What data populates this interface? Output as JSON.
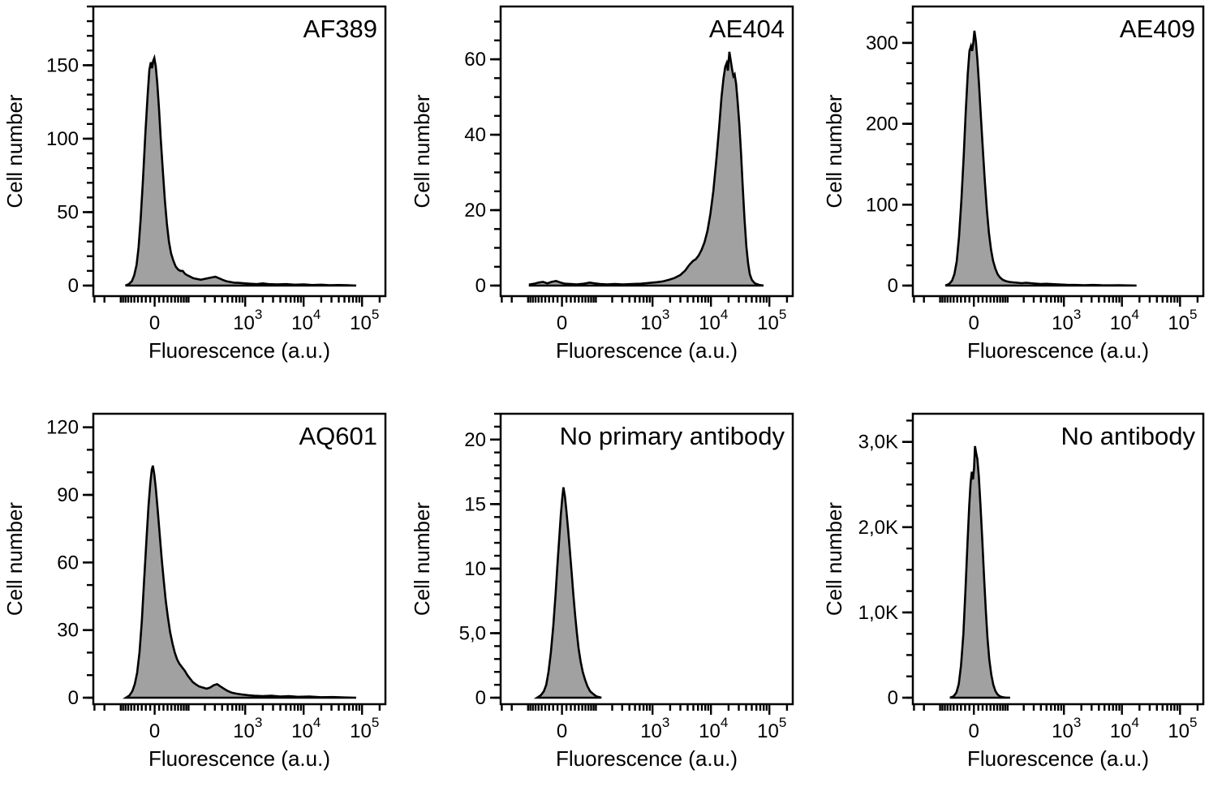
{
  "figure": {
    "background": "#ffffff",
    "histogram_fill": "#a1a1a1",
    "histogram_stroke": "#000000",
    "axis_color": "#000000",
    "y_axis_title": "Cell number",
    "x_axis": {
      "title": "Fluorescence (a.u.)",
      "scale": {
        "type": "biexponential",
        "zero_pos": 0.21,
        "decade_width": 0.2,
        "linear_constant": 56.4,
        "labeled_values": [
          0,
          1000,
          10000,
          100000
        ]
      },
      "labeled_ticks": [
        {
          "value": 0,
          "label": "0"
        },
        {
          "value": 1000,
          "mantissa": "10",
          "exponent": "3"
        },
        {
          "value": 10000,
          "mantissa": "10",
          "exponent": "4"
        },
        {
          "value": 100000,
          "mantissa": "10",
          "exponent": "5"
        }
      ]
    }
  },
  "chart_data": [
    {
      "type": "area",
      "title": "AF389",
      "ylim": [
        0,
        190
      ],
      "y_minor_step": 10,
      "y_major_ticks": [
        {
          "value": 0,
          "label": "0"
        },
        {
          "value": 50,
          "label": "50"
        },
        {
          "value": 100,
          "label": "100"
        },
        {
          "value": 150,
          "label": "150"
        }
      ],
      "peak": {
        "x_fraction": 0.209,
        "count": 155
      },
      "x_units": "axis_fraction",
      "points": [
        [
          0.11,
          0
        ],
        [
          0.122,
          1
        ],
        [
          0.132,
          3
        ],
        [
          0.14,
          7
        ],
        [
          0.148,
          14
        ],
        [
          0.155,
          26
        ],
        [
          0.162,
          45
        ],
        [
          0.17,
          72
        ],
        [
          0.178,
          103
        ],
        [
          0.186,
          130
        ],
        [
          0.192,
          147
        ],
        [
          0.197,
          152
        ],
        [
          0.201,
          148
        ],
        [
          0.205,
          153
        ],
        [
          0.209,
          155
        ],
        [
          0.214,
          149
        ],
        [
          0.219,
          138
        ],
        [
          0.225,
          120
        ],
        [
          0.231,
          99
        ],
        [
          0.238,
          78
        ],
        [
          0.245,
          58
        ],
        [
          0.252,
          42
        ],
        [
          0.259,
          30
        ],
        [
          0.266,
          22
        ],
        [
          0.274,
          17
        ],
        [
          0.282,
          13
        ],
        [
          0.29,
          11
        ],
        [
          0.298,
          10
        ],
        [
          0.306,
          10
        ],
        [
          0.314,
          8
        ],
        [
          0.322,
          7
        ],
        [
          0.332,
          6
        ],
        [
          0.342,
          5
        ],
        [
          0.355,
          4.5
        ],
        [
          0.368,
          4
        ],
        [
          0.38,
          4.5
        ],
        [
          0.393,
          5
        ],
        [
          0.405,
          5.5
        ],
        [
          0.418,
          6
        ],
        [
          0.43,
          5
        ],
        [
          0.442,
          4
        ],
        [
          0.455,
          3
        ],
        [
          0.468,
          2.5
        ],
        [
          0.482,
          2
        ],
        [
          0.5,
          1.8
        ],
        [
          0.52,
          1.5
        ],
        [
          0.54,
          1.2
        ],
        [
          0.56,
          1
        ],
        [
          0.58,
          1.5
        ],
        [
          0.6,
          1
        ],
        [
          0.63,
          0.8
        ],
        [
          0.66,
          1
        ],
        [
          0.69,
          0.6
        ],
        [
          0.72,
          0.8
        ],
        [
          0.75,
          0.4
        ],
        [
          0.78,
          0.6
        ],
        [
          0.81,
          0.3
        ],
        [
          0.84,
          0.4
        ],
        [
          0.87,
          0.2
        ],
        [
          0.9,
          0
        ]
      ]
    },
    {
      "type": "area",
      "title": "AE404",
      "ylim": [
        0,
        74
      ],
      "y_minor_step": 5,
      "y_major_ticks": [
        {
          "value": 0,
          "label": "0"
        },
        {
          "value": 20,
          "label": "20"
        },
        {
          "value": 40,
          "label": "40"
        },
        {
          "value": 60,
          "label": "60"
        }
      ],
      "peak": {
        "x_fraction": 0.783,
        "count": 62
      },
      "x_units": "axis_fraction",
      "points": [
        [
          0.1,
          0.3
        ],
        [
          0.115,
          0.5
        ],
        [
          0.13,
          0.8
        ],
        [
          0.145,
          1.0
        ],
        [
          0.16,
          0.6
        ],
        [
          0.175,
          1.0
        ],
        [
          0.19,
          1.2
        ],
        [
          0.205,
          0.8
        ],
        [
          0.22,
          0.5
        ],
        [
          0.24,
          0.4
        ],
        [
          0.26,
          0.3
        ],
        [
          0.285,
          0.5
        ],
        [
          0.305,
          0.8
        ],
        [
          0.32,
          0.6
        ],
        [
          0.34,
          0.4
        ],
        [
          0.365,
          0.3
        ],
        [
          0.39,
          0.4
        ],
        [
          0.42,
          0.3
        ],
        [
          0.45,
          0.4
        ],
        [
          0.48,
          0.5
        ],
        [
          0.51,
          0.7
        ],
        [
          0.535,
          0.9
        ],
        [
          0.555,
          1.1
        ],
        [
          0.575,
          1.5
        ],
        [
          0.595,
          2.0
        ],
        [
          0.615,
          2.8
        ],
        [
          0.632,
          4.0
        ],
        [
          0.646,
          5.5
        ],
        [
          0.658,
          6.5
        ],
        [
          0.668,
          7.0
        ],
        [
          0.678,
          8.0
        ],
        [
          0.688,
          9.5
        ],
        [
          0.698,
          11.5
        ],
        [
          0.708,
          14.5
        ],
        [
          0.718,
          19
        ],
        [
          0.728,
          25
        ],
        [
          0.738,
          33
        ],
        [
          0.748,
          42
        ],
        [
          0.756,
          50
        ],
        [
          0.763,
          55
        ],
        [
          0.769,
          58
        ],
        [
          0.774,
          59
        ],
        [
          0.778,
          57
        ],
        [
          0.783,
          62
        ],
        [
          0.788,
          59.5
        ],
        [
          0.793,
          57
        ],
        [
          0.797,
          55.5
        ],
        [
          0.801,
          56
        ],
        [
          0.806,
          53.5
        ],
        [
          0.811,
          49
        ],
        [
          0.817,
          43
        ],
        [
          0.823,
          35
        ],
        [
          0.829,
          26
        ],
        [
          0.835,
          17.5
        ],
        [
          0.841,
          10.5
        ],
        [
          0.847,
          6
        ],
        [
          0.853,
          3
        ],
        [
          0.86,
          1.5
        ],
        [
          0.87,
          0.6
        ],
        [
          0.885,
          0.2
        ],
        [
          0.9,
          0
        ]
      ]
    },
    {
      "type": "area",
      "title": "AE409",
      "ylim": [
        0,
        345
      ],
      "y_minor_step": 25,
      "y_major_ticks": [
        {
          "value": 0,
          "label": "0"
        },
        {
          "value": 100,
          "label": "100"
        },
        {
          "value": 200,
          "label": "200"
        },
        {
          "value": 300,
          "label": "300"
        }
      ],
      "peak": {
        "x_fraction": 0.212,
        "count": 315
      },
      "x_units": "axis_fraction",
      "points": [
        [
          0.112,
          0
        ],
        [
          0.125,
          2
        ],
        [
          0.135,
          6
        ],
        [
          0.143,
          14
        ],
        [
          0.151,
          30
        ],
        [
          0.159,
          60
        ],
        [
          0.167,
          105
        ],
        [
          0.175,
          160
        ],
        [
          0.182,
          215
        ],
        [
          0.189,
          262
        ],
        [
          0.195,
          290
        ],
        [
          0.2,
          296
        ],
        [
          0.204,
          290
        ],
        [
          0.208,
          300
        ],
        [
          0.212,
          315
        ],
        [
          0.217,
          302
        ],
        [
          0.222,
          280
        ],
        [
          0.228,
          248
        ],
        [
          0.234,
          210
        ],
        [
          0.241,
          168
        ],
        [
          0.248,
          128
        ],
        [
          0.255,
          93
        ],
        [
          0.262,
          65
        ],
        [
          0.269,
          45
        ],
        [
          0.276,
          31
        ],
        [
          0.284,
          21
        ],
        [
          0.292,
          14
        ],
        [
          0.3,
          10
        ],
        [
          0.31,
          7
        ],
        [
          0.32,
          5.5
        ],
        [
          0.332,
          4.5
        ],
        [
          0.345,
          4
        ],
        [
          0.36,
          3.5
        ],
        [
          0.375,
          3
        ],
        [
          0.39,
          3.5
        ],
        [
          0.405,
          3
        ],
        [
          0.42,
          2.5
        ],
        [
          0.44,
          2
        ],
        [
          0.46,
          2.2
        ],
        [
          0.48,
          1.8
        ],
        [
          0.5,
          1.5
        ],
        [
          0.53,
          1
        ],
        [
          0.56,
          0.8
        ],
        [
          0.59,
          0.5
        ],
        [
          0.62,
          0.8
        ],
        [
          0.65,
          0.4
        ],
        [
          0.68,
          0.3
        ],
        [
          0.71,
          0.4
        ],
        [
          0.74,
          0.2
        ],
        [
          0.77,
          0
        ]
      ]
    },
    {
      "type": "area",
      "title": "AQ601",
      "ylim": [
        0,
        126
      ],
      "y_minor_step": 10,
      "y_major_ticks": [
        {
          "value": 0,
          "label": "0"
        },
        {
          "value": 30,
          "label": "30"
        },
        {
          "value": 60,
          "label": "60"
        },
        {
          "value": 90,
          "label": "90"
        },
        {
          "value": 120,
          "label": "120"
        }
      ],
      "peak": {
        "x_fraction": 0.204,
        "count": 103
      },
      "x_units": "axis_fraction",
      "points": [
        [
          0.112,
          0
        ],
        [
          0.124,
          1
        ],
        [
          0.134,
          3
        ],
        [
          0.142,
          6
        ],
        [
          0.15,
          11
        ],
        [
          0.158,
          20
        ],
        [
          0.166,
          34
        ],
        [
          0.174,
          52
        ],
        [
          0.182,
          70
        ],
        [
          0.189,
          85
        ],
        [
          0.195,
          95
        ],
        [
          0.2,
          101
        ],
        [
          0.204,
          103
        ],
        [
          0.209,
          99
        ],
        [
          0.214,
          93
        ],
        [
          0.22,
          84
        ],
        [
          0.227,
          73
        ],
        [
          0.234,
          62
        ],
        [
          0.241,
          52
        ],
        [
          0.248,
          43
        ],
        [
          0.255,
          36
        ],
        [
          0.263,
          29
        ],
        [
          0.271,
          24
        ],
        [
          0.279,
          20
        ],
        [
          0.287,
          17
        ],
        [
          0.295,
          15
        ],
        [
          0.304,
          13.5
        ],
        [
          0.313,
          12
        ],
        [
          0.322,
          10
        ],
        [
          0.331,
          8.5
        ],
        [
          0.34,
          7
        ],
        [
          0.35,
          6
        ],
        [
          0.362,
          5
        ],
        [
          0.375,
          4.5
        ],
        [
          0.388,
          4
        ],
        [
          0.4,
          4.5
        ],
        [
          0.412,
          5.5
        ],
        [
          0.424,
          6
        ],
        [
          0.435,
          5
        ],
        [
          0.447,
          4
        ],
        [
          0.46,
          3
        ],
        [
          0.475,
          2.2
        ],
        [
          0.49,
          1.8
        ],
        [
          0.51,
          1.4
        ],
        [
          0.53,
          1.1
        ],
        [
          0.55,
          0.9
        ],
        [
          0.58,
          0.7
        ],
        [
          0.61,
          0.9
        ],
        [
          0.64,
          0.5
        ],
        [
          0.67,
          0.7
        ],
        [
          0.7,
          0.4
        ],
        [
          0.74,
          0.5
        ],
        [
          0.78,
          0.2
        ],
        [
          0.82,
          0.3
        ],
        [
          0.86,
          0.1
        ],
        [
          0.9,
          0
        ]
      ]
    },
    {
      "type": "area",
      "title": "No primary antibody",
      "ylim": [
        0,
        22
      ],
      "y_minor_step": 1,
      "y_major_ticks": [
        {
          "value": 0,
          "label": "0"
        },
        {
          "value": 5,
          "label": "5,0"
        },
        {
          "value": 10,
          "label": "10"
        },
        {
          "value": 15,
          "label": "15"
        },
        {
          "value": 20,
          "label": "20"
        }
      ],
      "peak": {
        "x_fraction": 0.215,
        "count": 16.3
      },
      "x_units": "axis_fraction",
      "points": [
        [
          0.125,
          0
        ],
        [
          0.138,
          0.2
        ],
        [
          0.148,
          0.5
        ],
        [
          0.156,
          1
        ],
        [
          0.164,
          2
        ],
        [
          0.172,
          3.5
        ],
        [
          0.18,
          5.5
        ],
        [
          0.188,
          8
        ],
        [
          0.195,
          10.5
        ],
        [
          0.201,
          12.5
        ],
        [
          0.206,
          14.2
        ],
        [
          0.211,
          15.5
        ],
        [
          0.215,
          16.3
        ],
        [
          0.22,
          15.6
        ],
        [
          0.225,
          14.5
        ],
        [
          0.231,
          13
        ],
        [
          0.237,
          11.4
        ],
        [
          0.243,
          9.7
        ],
        [
          0.249,
          8
        ],
        [
          0.255,
          6.4
        ],
        [
          0.261,
          5
        ],
        [
          0.267,
          3.8
        ],
        [
          0.274,
          2.8
        ],
        [
          0.281,
          2
        ],
        [
          0.289,
          1.4
        ],
        [
          0.297,
          0.9
        ],
        [
          0.306,
          0.5
        ],
        [
          0.316,
          0.3
        ],
        [
          0.328,
          0.1
        ],
        [
          0.345,
          0
        ]
      ]
    },
    {
      "type": "area",
      "title": "No antibody",
      "ylim": [
        0,
        3330
      ],
      "y_minor_step": 250,
      "y_major_ticks": [
        {
          "value": 0,
          "label": "0"
        },
        {
          "value": 1000,
          "label": "1,0K"
        },
        {
          "value": 2000,
          "label": "2,0K"
        },
        {
          "value": 3000,
          "label": "3,0K"
        }
      ],
      "peak": {
        "x_fraction": 0.214,
        "count": 2950
      },
      "x_units": "axis_fraction",
      "points": [
        [
          0.128,
          0
        ],
        [
          0.14,
          15
        ],
        [
          0.15,
          60
        ],
        [
          0.158,
          160
        ],
        [
          0.166,
          380
        ],
        [
          0.174,
          750
        ],
        [
          0.181,
          1250
        ],
        [
          0.188,
          1800
        ],
        [
          0.194,
          2250
        ],
        [
          0.199,
          2520
        ],
        [
          0.203,
          2650
        ],
        [
          0.207,
          2560
        ],
        [
          0.211,
          2700
        ],
        [
          0.214,
          2950
        ],
        [
          0.218,
          2870
        ],
        [
          0.222,
          2800
        ],
        [
          0.227,
          2600
        ],
        [
          0.233,
          2250
        ],
        [
          0.239,
          1850
        ],
        [
          0.245,
          1430
        ],
        [
          0.251,
          1030
        ],
        [
          0.257,
          700
        ],
        [
          0.263,
          450
        ],
        [
          0.27,
          270
        ],
        [
          0.277,
          150
        ],
        [
          0.284,
          80
        ],
        [
          0.291,
          40
        ],
        [
          0.299,
          18
        ],
        [
          0.308,
          7
        ],
        [
          0.318,
          2
        ],
        [
          0.335,
          0
        ]
      ]
    }
  ]
}
